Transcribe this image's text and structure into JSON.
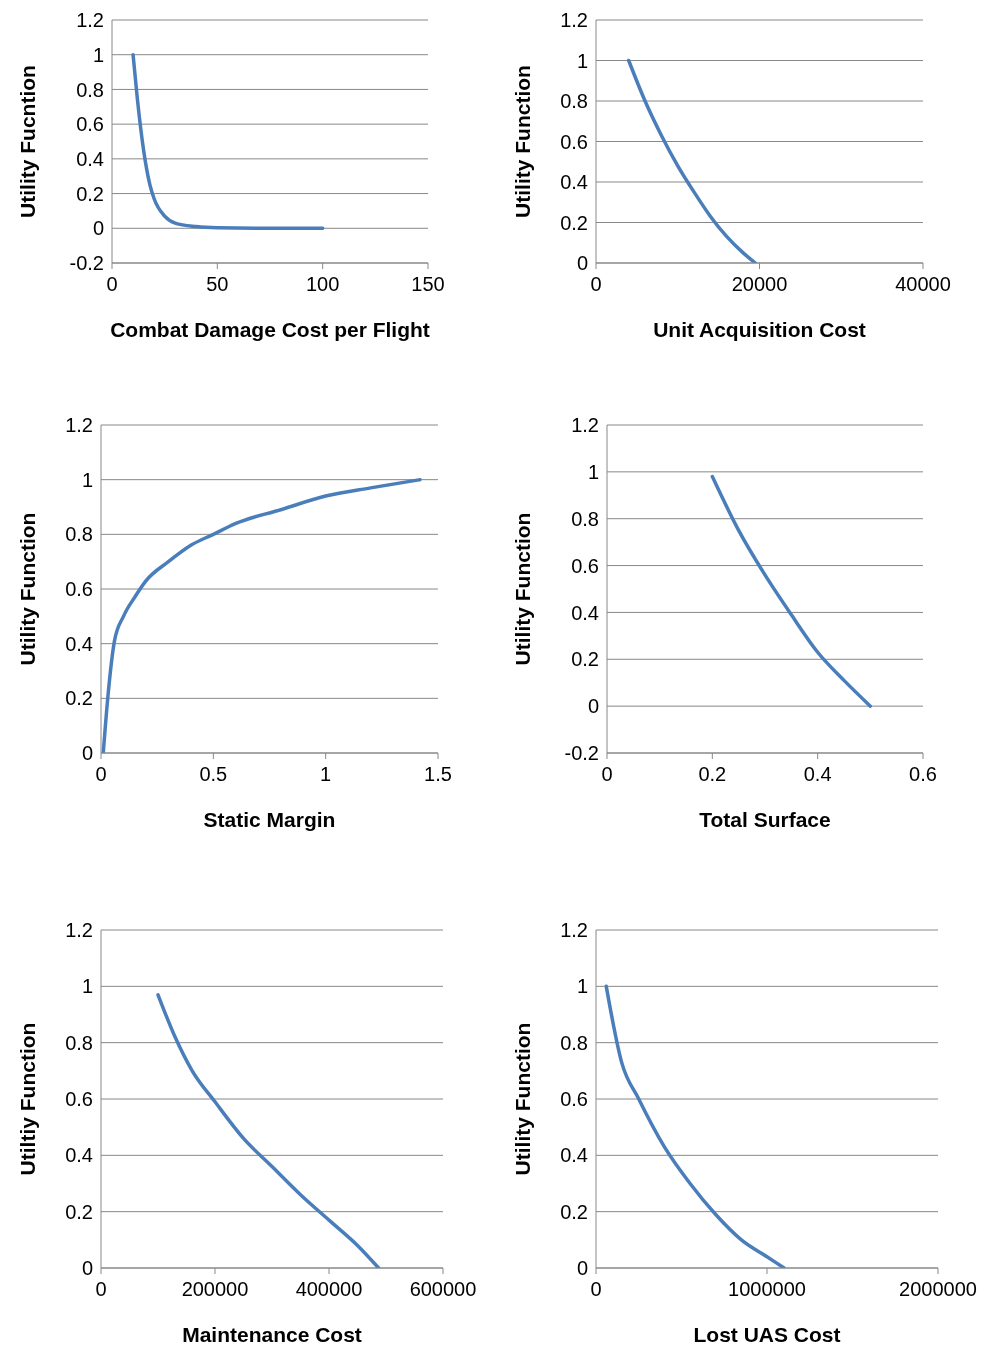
{
  "chart_data": [
    {
      "type": "line",
      "xlabel": "Combat Damage Cost per Flight",
      "ylabel": "Utility Fucntion",
      "x": [
        10,
        12,
        15,
        18,
        20,
        25,
        30,
        40,
        50,
        75,
        100
      ],
      "values": [
        1,
        0.75,
        0.45,
        0.25,
        0.17,
        0.07,
        0.03,
        0.01,
        0.003,
        0,
        0
      ],
      "color": "#4a7ebb",
      "xlim": [
        0,
        150
      ],
      "ylim": [
        -0.2,
        1.2
      ],
      "xticks": [
        0,
        50,
        100,
        150
      ],
      "yticks": [
        -0.2,
        0,
        0.2,
        0.4,
        0.6,
        0.8,
        1,
        1.2
      ],
      "grid": "y"
    },
    {
      "type": "line",
      "xlabel": "Unit Acquisition Cost",
      "ylabel": "Utility Function",
      "x": [
        4000,
        6000,
        8000,
        10000,
        12000,
        14000,
        16000,
        18000,
        19500
      ],
      "values": [
        1,
        0.8,
        0.63,
        0.48,
        0.35,
        0.23,
        0.13,
        0.05,
        0
      ],
      "color": "#4a7ebb",
      "xlim": [
        0,
        40000
      ],
      "ylim": [
        0,
        1.2
      ],
      "xticks": [
        0,
        20000,
        40000
      ],
      "yticks": [
        0,
        0.2,
        0.4,
        0.6,
        0.8,
        1,
        1.2
      ],
      "grid": "y"
    },
    {
      "type": "line",
      "xlabel": "Static Margin",
      "ylabel": "Utility Function",
      "x": [
        0.01,
        0.03,
        0.06,
        0.1,
        0.15,
        0.2,
        0.3,
        0.4,
        0.5,
        0.6,
        0.8,
        1,
        1.2,
        1.42
      ],
      "values": [
        0,
        0.2,
        0.41,
        0.5,
        0.57,
        0.63,
        0.7,
        0.76,
        0.8,
        0.84,
        0.89,
        0.94,
        0.97,
        1
      ],
      "color": "#4a7ebb",
      "xlim": [
        0,
        1.5
      ],
      "ylim": [
        0,
        1.2
      ],
      "xticks": [
        0,
        0.5,
        1,
        1.5
      ],
      "yticks": [
        0,
        0.2,
        0.4,
        0.6,
        0.8,
        1,
        1.2
      ],
      "grid": "y"
    },
    {
      "type": "line",
      "xlabel": "Total Surface",
      "ylabel": "Utility Function",
      "x": [
        0.2,
        0.25,
        0.3,
        0.35,
        0.4,
        0.45,
        0.5
      ],
      "values": [
        0.98,
        0.75,
        0.56,
        0.39,
        0.23,
        0.11,
        0
      ],
      "color": "#4a7ebb",
      "xlim": [
        0,
        0.6
      ],
      "ylim": [
        -0.2,
        1.2
      ],
      "xticks": [
        0,
        0.2,
        0.4,
        0.6
      ],
      "yticks": [
        -0.2,
        0,
        0.2,
        0.4,
        0.6,
        0.8,
        1,
        1.2
      ],
      "grid": "y"
    },
    {
      "type": "line",
      "xlabel": "Maintenance Cost",
      "ylabel": "Utiltiy Function",
      "x": [
        100000,
        130000,
        160000,
        200000,
        250000,
        300000,
        350000,
        400000,
        450000,
        487000
      ],
      "values": [
        0.97,
        0.82,
        0.7,
        0.59,
        0.46,
        0.36,
        0.26,
        0.17,
        0.08,
        0
      ],
      "color": "#4a7ebb",
      "xlim": [
        0,
        600000
      ],
      "ylim": [
        0,
        1.2
      ],
      "xticks": [
        0,
        200000,
        400000,
        600000
      ],
      "yticks": [
        0,
        0.2,
        0.4,
        0.6,
        0.8,
        1,
        1.2
      ],
      "grid": "y"
    },
    {
      "type": "line",
      "xlabel": "Lost UAS Cost",
      "ylabel": "Utility Function",
      "x": [
        60000,
        150000,
        250000,
        400000,
        550000,
        700000,
        850000,
        1000000,
        1100000
      ],
      "values": [
        1,
        0.73,
        0.6,
        0.43,
        0.3,
        0.19,
        0.1,
        0.04,
        0
      ],
      "color": "#4a7ebb",
      "xlim": [
        0,
        2000000
      ],
      "ylim": [
        0,
        1.2
      ],
      "xticks": [
        0,
        1000000,
        2000000
      ],
      "yticks": [
        0,
        0.2,
        0.4,
        0.6,
        0.8,
        1,
        1.2
      ],
      "grid": "y"
    }
  ]
}
